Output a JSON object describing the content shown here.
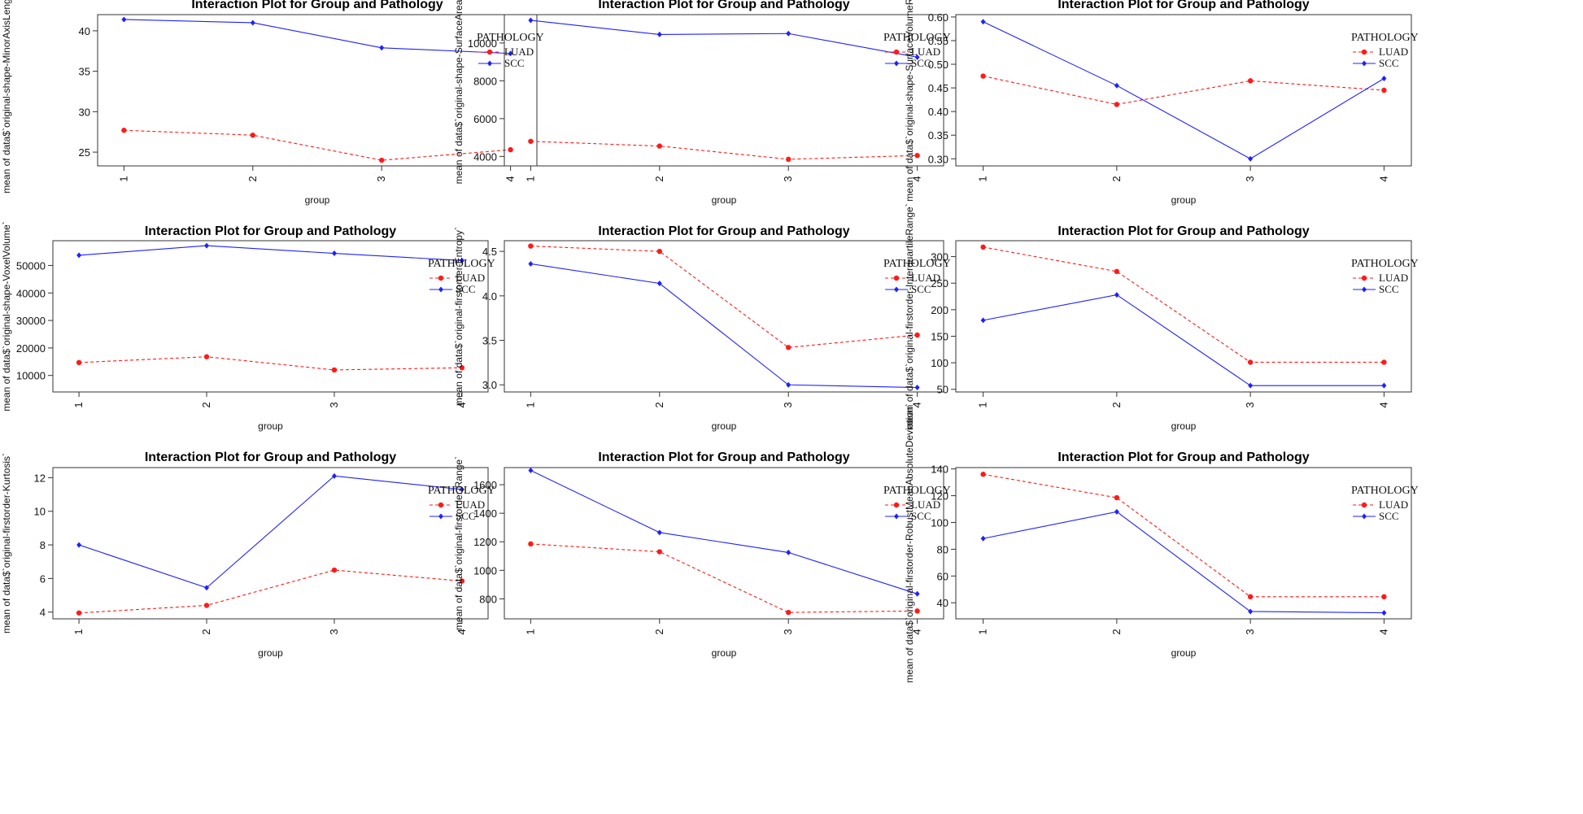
{
  "colors": {
    "LUAD": "#ff1a1a",
    "SCC": "#2020ff",
    "axis": "#333333"
  },
  "legend": {
    "title": "PATHOLOGY",
    "labels": [
      "LUAD",
      "SCC"
    ]
  },
  "chart_data": [
    {
      "type": "line",
      "title": "Interaction Plot for Group and Pathology",
      "xlabel": "group",
      "ylabel": "mean of  data$`original-shape-MinorAxisLength`",
      "categories": [
        "1",
        "2",
        "3",
        "4"
      ],
      "ylim": [
        23.3,
        42.0
      ],
      "yticks": [
        25,
        30,
        35,
        40
      ],
      "ytick_labels": [
        "25",
        "30",
        "35",
        "40"
      ],
      "series": [
        {
          "name": "LUAD",
          "values": [
            27.7,
            27.1,
            24.0,
            25.3
          ]
        },
        {
          "name": "SCC",
          "values": [
            41.4,
            41.0,
            37.9,
            37.2
          ]
        }
      ]
    },
    {
      "type": "line",
      "title": "Interaction Plot for Group and Pathology",
      "xlabel": "group",
      "ylabel": "mean of  data$`original-shape-SurfaceArea`",
      "categories": [
        "1",
        "2",
        "3",
        "4"
      ],
      "ylim": [
        3500,
        11500
      ],
      "yticks": [
        4000,
        6000,
        8000,
        10000
      ],
      "ytick_labels": [
        "4000",
        "6000",
        "8000",
        "10000"
      ],
      "series": [
        {
          "name": "LUAD",
          "values": [
            4800,
            4550,
            3850,
            4050
          ]
        },
        {
          "name": "SCC",
          "values": [
            11200,
            10450,
            10500,
            9250
          ]
        }
      ]
    },
    {
      "type": "line",
      "title": "Interaction Plot for Group and Pathology",
      "xlabel": "group",
      "ylabel": "mean of  data$`original-shape-SurfaceVolumeRatio`",
      "categories": [
        "1",
        "2",
        "3",
        "4"
      ],
      "ylim": [
        0.285,
        0.605
      ],
      "yticks": [
        0.3,
        0.35,
        0.4,
        0.45,
        0.5,
        0.55,
        0.6
      ],
      "ytick_labels": [
        "0.30",
        "0.35",
        "0.40",
        "0.45",
        "0.50",
        "0.55",
        "0.60"
      ],
      "series": [
        {
          "name": "LUAD",
          "values": [
            0.475,
            0.415,
            0.465,
            0.445
          ]
        },
        {
          "name": "SCC",
          "values": [
            0.59,
            0.455,
            0.3,
            0.47
          ]
        }
      ]
    },
    {
      "type": "line",
      "title": "Interaction Plot for Group and Pathology",
      "xlabel": "group",
      "ylabel": "mean of  data$`original-shape-VoxelVolume`",
      "categories": [
        "1",
        "2",
        "3",
        "4"
      ],
      "ylim": [
        4000,
        59000
      ],
      "yticks": [
        20000,
        40000
      ],
      "ytick_labels": [
        "20000",
        "40000"
      ],
      "ytick_partial": [
        [
          50000,
          "50000"
        ],
        [
          30000,
          "30000"
        ],
        [
          10000,
          "10000"
        ]
      ],
      "series": [
        {
          "name": "LUAD",
          "values": [
            14700,
            16800,
            12000,
            12800
          ]
        },
        {
          "name": "SCC",
          "values": [
            53700,
            57200,
            54400,
            51800
          ]
        }
      ]
    },
    {
      "type": "line",
      "title": "Interaction Plot for Group and Pathology",
      "xlabel": "group",
      "ylabel": "mean of  data$`original-firstorder-Entropy`",
      "categories": [
        "1",
        "2",
        "3",
        "4"
      ],
      "ylim": [
        2.92,
        4.62
      ],
      "yticks": [
        3.0,
        3.5,
        4.0,
        4.5
      ],
      "ytick_labels": [
        "3.0",
        "3.5",
        "4.0",
        "4.5"
      ],
      "series": [
        {
          "name": "LUAD",
          "values": [
            4.56,
            4.5,
            3.42,
            3.56
          ]
        },
        {
          "name": "SCC",
          "values": [
            4.36,
            4.14,
            3.0,
            2.97
          ]
        }
      ]
    },
    {
      "type": "line",
      "title": "Interaction Plot for Group and Pathology",
      "xlabel": "group",
      "ylabel": "mean of  data$`original-firstorder-InterquartileRange`",
      "categories": [
        "1",
        "2",
        "3",
        "4"
      ],
      "ylim": [
        45,
        330
      ],
      "yticks": [
        50,
        100,
        150,
        200,
        250,
        300
      ],
      "ytick_labels": [
        "50",
        "100",
        "150",
        "200",
        "250",
        "300"
      ],
      "series": [
        {
          "name": "LUAD",
          "values": [
            318,
            272,
            101,
            101
          ]
        },
        {
          "name": "SCC",
          "values": [
            180,
            228,
            57,
            57
          ]
        }
      ]
    },
    {
      "type": "line",
      "title": "Interaction Plot for Group and Pathology",
      "xlabel": "group",
      "ylabel": "mean of  data$`original-firstorder-Kurtosis`",
      "categories": [
        "1",
        "2",
        "3",
        "4"
      ],
      "ylim": [
        3.6,
        12.6
      ],
      "yticks": [
        4,
        6,
        8,
        10,
        12
      ],
      "ytick_labels": [
        "4",
        "6",
        "8",
        "10",
        "12"
      ],
      "series": [
        {
          "name": "LUAD",
          "values": [
            3.95,
            4.4,
            6.5,
            5.85
          ]
        },
        {
          "name": "SCC",
          "values": [
            8.0,
            5.45,
            12.1,
            11.3
          ]
        }
      ]
    },
    {
      "type": "line",
      "title": "Interaction Plot for Group and Pathology",
      "xlabel": "group",
      "ylabel": "mean of  data$`original-firstorder-Range`",
      "categories": [
        "1",
        "2",
        "3",
        "4"
      ],
      "ylim": [
        660,
        1720
      ],
      "yticks": [
        800,
        1000,
        1200,
        1400,
        1600
      ],
      "ytick_labels": [
        "800",
        "1000",
        "1200",
        "1400",
        "1600"
      ],
      "series": [
        {
          "name": "LUAD",
          "values": [
            1185,
            1130,
            705,
            715
          ]
        },
        {
          "name": "SCC",
          "values": [
            1700,
            1265,
            1125,
            835
          ]
        }
      ]
    },
    {
      "type": "line",
      "title": "Interaction Plot for Group and Pathology",
      "xlabel": "group",
      "ylabel": "mean of  data$`original-firstorder-RobustMeanAbsoluteDeviation`",
      "categories": [
        "1",
        "2",
        "3",
        "4"
      ],
      "ylim": [
        28,
        141
      ],
      "yticks": [
        40,
        60,
        80,
        100,
        120,
        140
      ],
      "ytick_labels": [
        "40",
        "60",
        "80",
        "100",
        "120",
        "140"
      ],
      "series": [
        {
          "name": "LUAD",
          "values": [
            136,
            118.5,
            44.5,
            44.5
          ]
        },
        {
          "name": "SCC",
          "values": [
            88,
            108,
            33.5,
            32.5
          ]
        }
      ]
    }
  ]
}
